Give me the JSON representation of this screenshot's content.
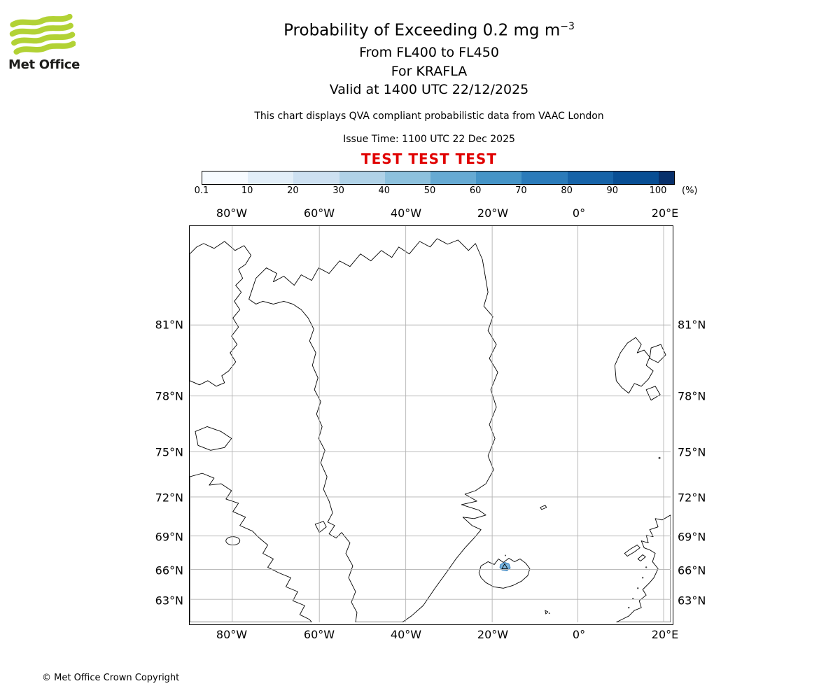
{
  "brand": {
    "name": "Met Office",
    "logo_green": "#b2d235"
  },
  "header": {
    "title_main": "Probability of Exceeding 0.2 mg m",
    "title_sup": "−3",
    "line_fl": "From FL400 to FL450",
    "line_volcano": "For KRAFLA",
    "line_valid": "Valid at 1400 UTC 22/12/2025",
    "qva_note": "This chart displays QVA compliant probabilistic data from VAAC London",
    "issue_time": "Issue Time: 1100 UTC 22 Dec 2025",
    "test_banner": "TEST TEST TEST",
    "test_color": "#e00000"
  },
  "colorbar": {
    "tick_labels": [
      "0.1",
      "10",
      "20",
      "30",
      "40",
      "50",
      "60",
      "70",
      "80",
      "90",
      "100"
    ],
    "unit_label": "(%)",
    "colors": [
      "#f7fbff",
      "#e2eef8",
      "#cde0f1",
      "#b0d2e7",
      "#8dc1dd",
      "#66aad3",
      "#4594c7",
      "#2b7bba",
      "#1663a8",
      "#084e94",
      "#08306b"
    ]
  },
  "map": {
    "lon_labels": [
      "80°W",
      "60°W",
      "40°W",
      "20°W",
      "0°",
      "20°E"
    ],
    "lat_labels": [
      "81°N",
      "78°N",
      "75°N",
      "72°N",
      "69°N",
      "66°N",
      "63°N"
    ],
    "krafla_marker": {
      "fill": "#7ab4dc",
      "edge": "#2171b5"
    }
  },
  "footer": {
    "copyright": "© Met Office Crown Copyright"
  }
}
